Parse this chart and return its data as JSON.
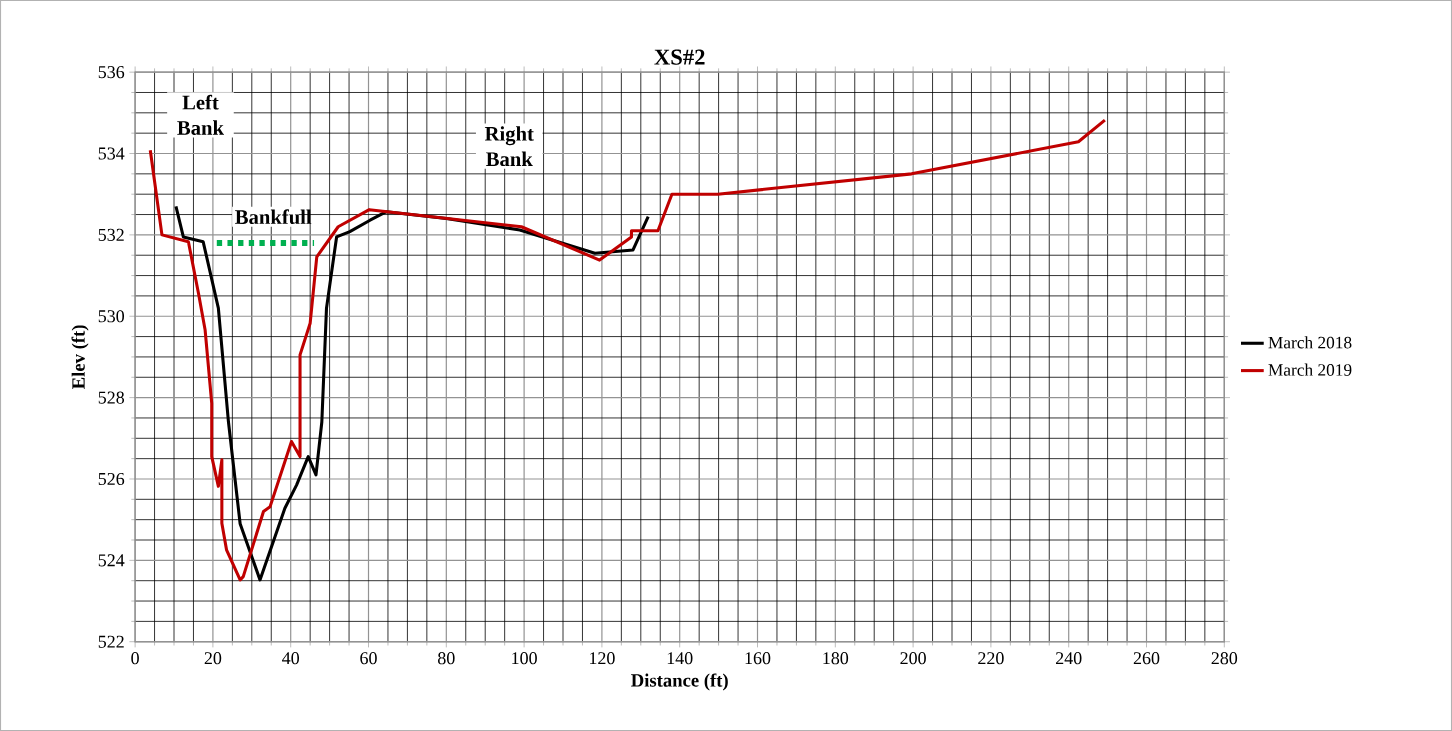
{
  "chart_data": {
    "type": "line",
    "title": "XS#2",
    "xlabel": "Distance (ft)",
    "ylabel": "Elev (ft)",
    "xlim": [
      0,
      280
    ],
    "ylim": [
      522,
      536
    ],
    "xticks": [
      0,
      20,
      40,
      60,
      80,
      100,
      120,
      140,
      160,
      180,
      200,
      220,
      240,
      260,
      280
    ],
    "yticks": [
      522,
      524,
      526,
      528,
      530,
      532,
      534,
      536
    ],
    "grid": true,
    "legend": "right",
    "annotations": [
      "Left Bank",
      "Right Bank",
      {
        "text": "Bankfull",
        "x": 33.5,
        "y": 531.8
      }
    ],
    "series": [
      {
        "name": "March 2018",
        "color": "#000000",
        "x": [
          10.5,
          12.4,
          17.5,
          21.4,
          24.0,
          27.0,
          32.1,
          38.5,
          41.5,
          44.5,
          46.5,
          48.0,
          49.2,
          51.8,
          55.2,
          60.4,
          64.6,
          80.0,
          98.9,
          118.2,
          128.0,
          131.9
        ],
        "values": [
          532.7,
          531.95,
          531.83,
          530.2,
          527.4,
          524.9,
          523.52,
          525.28,
          525.85,
          526.55,
          526.1,
          527.4,
          530.2,
          531.95,
          532.08,
          532.36,
          532.57,
          532.4,
          532.12,
          531.55,
          531.63,
          532.45
        ]
      },
      {
        "name": "March 2019",
        "color": "#c00000",
        "x": [
          3.9,
          6.9,
          13.7,
          16.3,
          18.0,
          19.7,
          19.7,
          21.4,
          22.3,
          22.3,
          23.5,
          27.0,
          27.8,
          33.0,
          34.7,
          40.2,
          42.4,
          42.4,
          45.0,
          46.7,
          52.2,
          60.2,
          99.3,
          119.4,
          127.6,
          127.6,
          134.4,
          138.0,
          149.8,
          199.6,
          242.5,
          249.3
        ],
        "values": [
          534.08,
          532.0,
          531.83,
          530.56,
          529.66,
          527.86,
          526.55,
          525.82,
          526.47,
          524.91,
          524.26,
          523.52,
          523.6,
          525.2,
          525.32,
          526.92,
          526.55,
          529.05,
          529.83,
          531.46,
          532.2,
          532.62,
          532.2,
          531.38,
          531.95,
          532.1,
          532.1,
          533.0,
          533.0,
          533.5,
          534.29,
          534.82
        ]
      },
      {
        "color": "#00b050",
        "line_style": "dotted",
        "x": [
          21.0,
          46.0
        ],
        "values": [
          531.8,
          531.8
        ]
      }
    ]
  }
}
